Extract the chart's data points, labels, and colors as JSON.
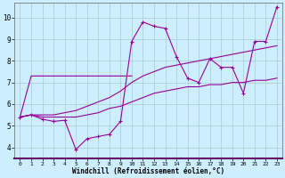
{
  "xlabel": "Windchill (Refroidissement éolien,°C)",
  "background_color": "#cceeff",
  "line_color": "#990099",
  "grid_color": "#aacccc",
  "xlim": [
    -0.5,
    23.5
  ],
  "ylim": [
    3.5,
    10.7
  ],
  "xticks": [
    0,
    1,
    2,
    3,
    4,
    5,
    6,
    7,
    8,
    9,
    10,
    11,
    12,
    13,
    14,
    15,
    16,
    17,
    18,
    19,
    20,
    21,
    22,
    23
  ],
  "yticks": [
    4,
    5,
    6,
    7,
    8,
    9,
    10
  ],
  "lines": [
    {
      "x": [
        0,
        1,
        2,
        3,
        4,
        5,
        6,
        7,
        8,
        9,
        10
      ],
      "y": [
        5.4,
        7.3,
        7.3,
        7.3,
        7.3,
        7.3,
        7.3,
        7.3,
        7.3,
        7.3,
        7.3
      ],
      "has_markers": false
    },
    {
      "x": [
        0,
        1,
        2,
        3,
        4,
        5,
        6,
        7,
        8,
        9,
        10,
        11,
        12,
        13,
        14,
        15,
        16,
        17,
        18,
        19,
        20,
        21,
        22,
        23
      ],
      "y": [
        5.4,
        5.5,
        5.3,
        5.2,
        5.25,
        3.9,
        4.4,
        4.5,
        4.6,
        5.2,
        8.9,
        9.8,
        9.6,
        9.5,
        8.2,
        7.2,
        7.0,
        8.1,
        7.7,
        7.7,
        6.5,
        8.9,
        8.9,
        10.5
      ],
      "has_markers": true
    },
    {
      "x": [
        0,
        1,
        2,
        3,
        4,
        5,
        6,
        7,
        8,
        9,
        10,
        11,
        12,
        13,
        14,
        15,
        16,
        17,
        18,
        19,
        20,
        21,
        22,
        23
      ],
      "y": [
        5.4,
        5.5,
        5.5,
        5.5,
        5.6,
        5.7,
        5.9,
        6.1,
        6.3,
        6.6,
        7.0,
        7.3,
        7.5,
        7.7,
        7.8,
        7.9,
        8.0,
        8.1,
        8.2,
        8.3,
        8.4,
        8.5,
        8.6,
        8.7
      ],
      "has_markers": false
    },
    {
      "x": [
        0,
        1,
        2,
        3,
        4,
        5,
        6,
        7,
        8,
        9,
        10,
        11,
        12,
        13,
        14,
        15,
        16,
        17,
        18,
        19,
        20,
        21,
        22,
        23
      ],
      "y": [
        5.4,
        5.5,
        5.4,
        5.4,
        5.4,
        5.4,
        5.5,
        5.6,
        5.8,
        5.9,
        6.1,
        6.3,
        6.5,
        6.6,
        6.7,
        6.8,
        6.8,
        6.9,
        6.9,
        7.0,
        7.0,
        7.1,
        7.1,
        7.2
      ],
      "has_markers": false
    }
  ]
}
